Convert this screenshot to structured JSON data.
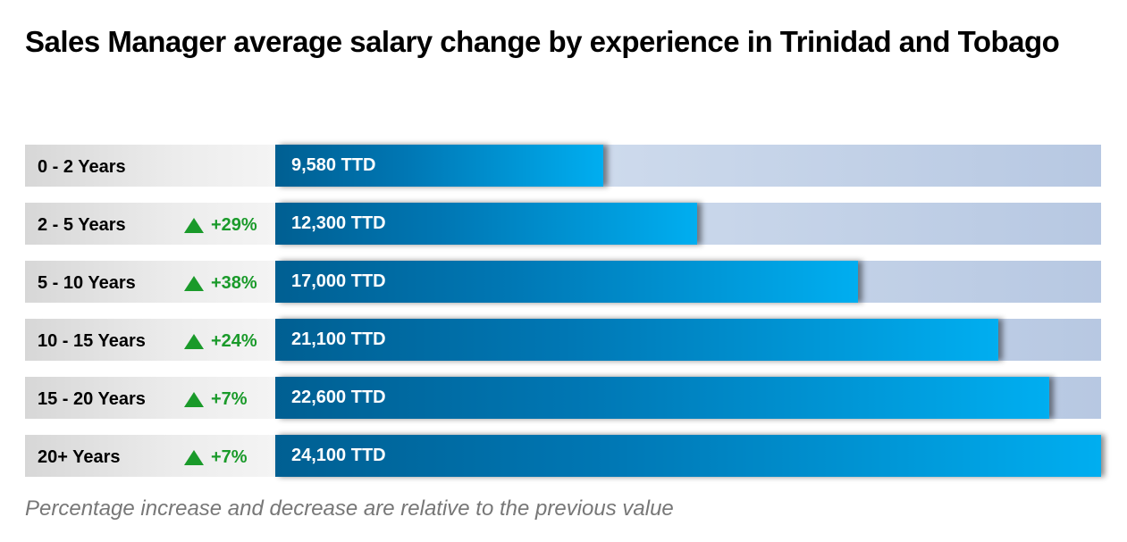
{
  "chart_data": {
    "type": "bar",
    "orientation": "horizontal",
    "title": "Sales Manager average salary change by experience in Trinidad and Tobago",
    "categories": [
      "0 - 2 Years",
      "2 - 5 Years",
      "5 - 10 Years",
      "10 - 15 Years",
      "15 - 20 Years",
      "20+ Years"
    ],
    "values": [
      9580,
      12300,
      17000,
      21100,
      22600,
      24100
    ],
    "value_labels": [
      "9,580 TTD",
      "12,300 TTD",
      "17,000 TTD",
      "21,100 TTD",
      "22,600 TTD",
      "24,100 TTD"
    ],
    "changes": [
      "",
      "+29%",
      "+38%",
      "+24%",
      "+7%",
      "+7%"
    ],
    "unit": "TTD",
    "xlim": [
      0,
      24100
    ],
    "footnote": "Percentage increase and decrease are relative to the previous value"
  },
  "colors": {
    "bar_start": "#005f92",
    "bar_end": "#00aef0",
    "track": "#c6d4ea",
    "increase": "#1a9a2a",
    "footnote": "#777777"
  },
  "icons": {
    "increase": "triangle-up-icon"
  }
}
